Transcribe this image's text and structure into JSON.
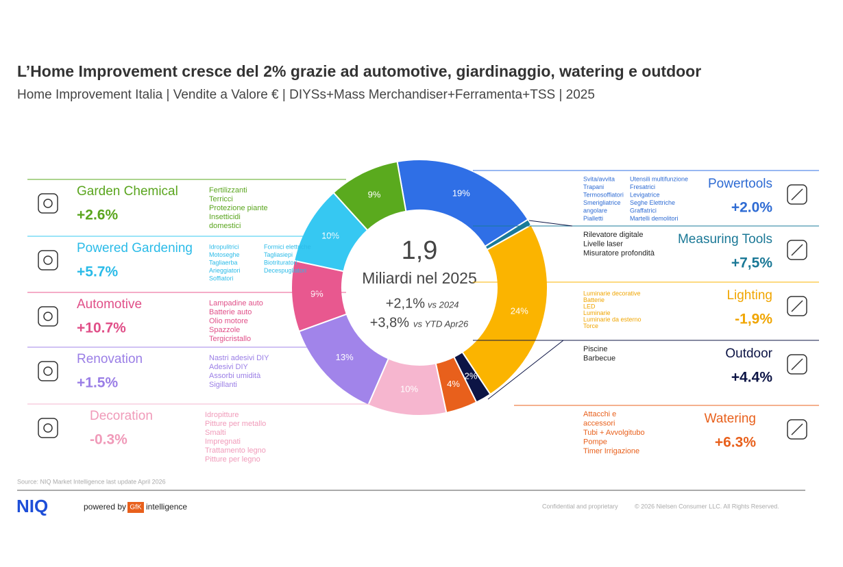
{
  "header": {
    "title": "L’Home Improvement cresce del 2% grazie ad automotive, giardinaggio, watering e outdoor",
    "subtitle": "Home Improvement Italia | Vendite a Valore € | DIYSs+Mass Merchandiser+Ferramenta+TSS | 2025"
  },
  "chart_data": {
    "type": "donut",
    "categories": [
      "Powertools",
      "Measuring Tools",
      "Lighting",
      "Outdoor",
      "Watering",
      "Decoration",
      "Renovation",
      "Automotive",
      "Powered Gardening",
      "Garden Chemical"
    ],
    "values": [
      19,
      0.8,
      24,
      2,
      4,
      10,
      13,
      9,
      10,
      9
    ],
    "value_labels": [
      "19%",
      null,
      "24%",
      "2%",
      "4%",
      "10%",
      "13%",
      "9%",
      "10%",
      "9%"
    ],
    "colors": [
      "#2f6fe6",
      "#1a7a99",
      "#fbb400",
      "#0c1445",
      "#e8601c",
      "#f6b6cf",
      "#a184ea",
      "#e8588f",
      "#36c8f2",
      "#5aaa1e"
    ],
    "text_colors": [
      "#2e6bd3",
      "#1a7896",
      "#f0a500",
      "#0c1445",
      "#e8601c",
      "#f09ab9",
      "#9a7ee6",
      "#e04f88",
      "#2bbbe8",
      "#5aa51e"
    ],
    "growth": [
      "+2.0%",
      "+7,5%",
      "-1,9%",
      "+4.4%",
      "+6.3%",
      "-0.3%",
      "+1.5%",
      "+10.7%",
      "+5.7%",
      "+2.6%"
    ],
    "items": [
      [
        [
          "Svita/avvita",
          "Trapani",
          "Termosoffiatori",
          "Smerigliatrice",
          "angolare",
          "Pialletti"
        ],
        [
          "Utensili multifunzione",
          "Fresatrici",
          "Levigatrice",
          "Seghe Elettriche",
          "Graffatrici",
          "Martelli demolitori"
        ]
      ],
      [
        [
          "Rilevatore digitale",
          "Livelle laser",
          "Misuratore profondità"
        ]
      ],
      [
        [
          "Luminarie decorative",
          "Batterie",
          "LED",
          "Luminarie",
          "Luminarie da esterno",
          "Torce"
        ]
      ],
      [
        [
          "Piscine",
          "Barbecue"
        ]
      ],
      [
        [
          "Attacchi e",
          "accessori",
          "Tubi + Avvolgitubo",
          "Pompe",
          "Timer Irrigazione"
        ]
      ],
      [
        [
          "Idropitture",
          "Pitture per metallo",
          "Smalti",
          "Impregnati",
          "Trattamento legno",
          "Pitture per legno"
        ]
      ],
      [
        [
          "Nastri adesivi DIY",
          "Adesivi DIY",
          "Assorbi umidità",
          "Sigillanti"
        ]
      ],
      [
        [
          "Lampadine auto",
          "Batterie auto",
          "Olio motore",
          "Spazzole",
          "Tergicristallo"
        ]
      ],
      [
        [
          "Idropulitrici",
          "Motoseghe",
          "Tagliaerba",
          "Arieggiatori",
          "Soffiatori"
        ],
        [
          "Formici elettriche",
          "Tagliasiepi",
          "Biotrituratori",
          "Decespugliatori"
        ]
      ],
      [
        [
          "Fertilizzanti",
          "Terricci",
          "Protezione piante",
          "Insetticidi",
          "domestici"
        ]
      ]
    ],
    "center": {
      "total": "1,9",
      "total_label": "Miliardi nel 2025",
      "growth_1": "+2,1%",
      "growth_1_label": "vs 2024",
      "growth_2": "+3,8%",
      "growth_2_label": "vs YTD Apr26"
    }
  },
  "footer": {
    "source": "Source: NIQ Market Intelligence last update April 2026",
    "logo": "NIQ",
    "powered_by": "powered by",
    "gfk": "GfK",
    "intelligence": "intelligence",
    "confidential": "Confidential and proprietary",
    "copyright": "© 2026 Nielsen Consumer LLC. All Rights Reserved."
  }
}
